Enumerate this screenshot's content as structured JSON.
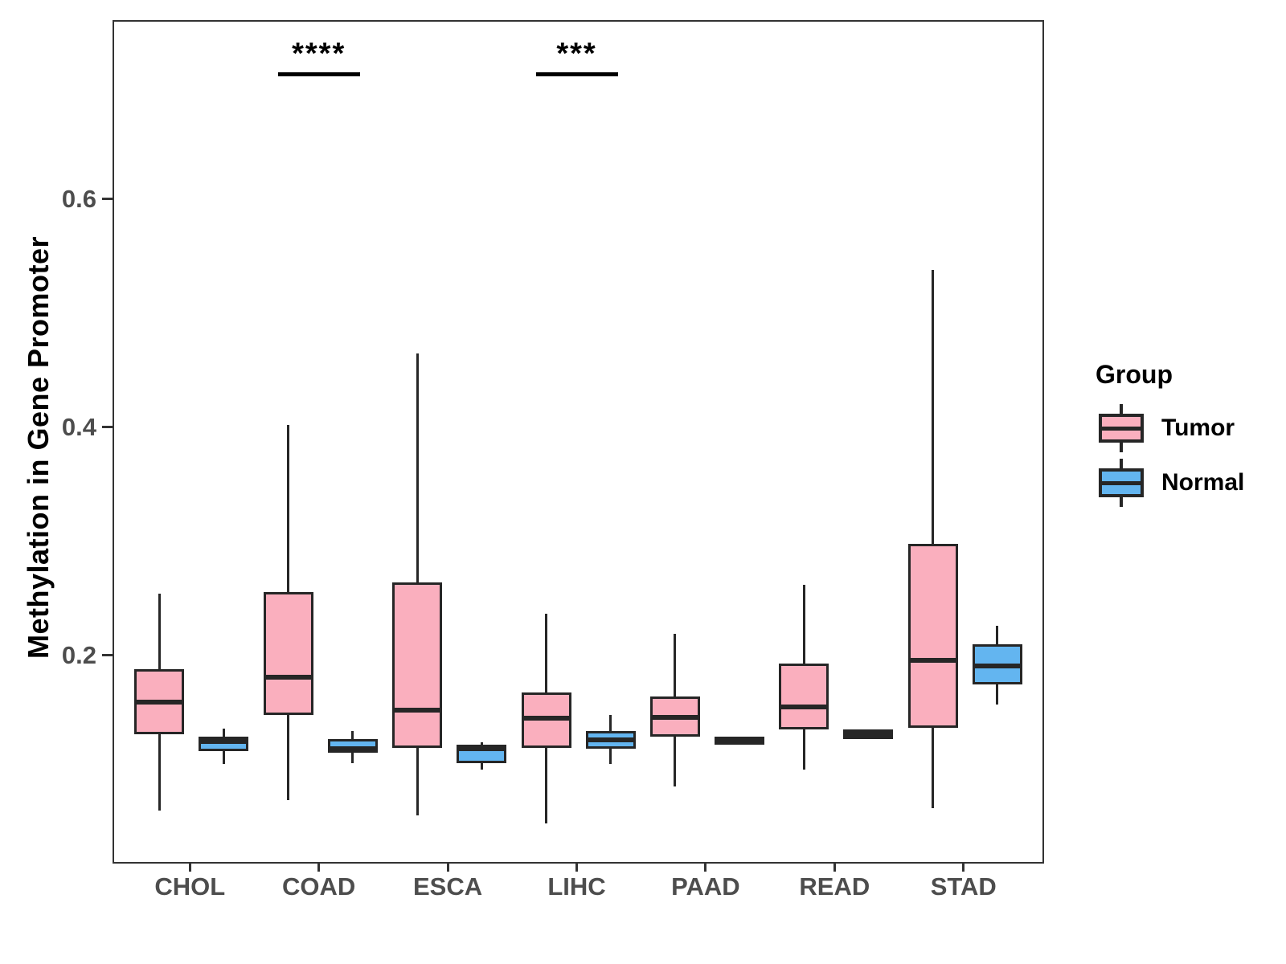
{
  "chart_data": {
    "type": "boxplot",
    "title": "",
    "xlabel": "",
    "ylabel": "Methylation in Gene Promoter",
    "categories": [
      "CHOL",
      "COAD",
      "ESCA",
      "LIHC",
      "PAAD",
      "READ",
      "STAD"
    ],
    "y_ticks": [
      "0.2",
      "0.4",
      "0.6"
    ],
    "y_tick_values": [
      0.2,
      0.4,
      0.6
    ],
    "ylim": [
      0.02,
      0.757
    ],
    "grid": "off",
    "legend_position": "right",
    "legend": {
      "title": "Group",
      "entries": [
        {
          "label": "Tumor",
          "color": "#FAAFBE"
        },
        {
          "label": "Normal",
          "color": "#63B5F0"
        }
      ]
    },
    "colors": {
      "tumor_fill": "#FAAFBE",
      "normal_fill": "#63B5F0",
      "box_border": "#262626",
      "axis_text": "#4d4d4d",
      "axis_line": "#333333"
    },
    "series": [
      {
        "name": "Tumor",
        "color": "#FAAFBE",
        "boxes": [
          {
            "category": "CHOL",
            "min": 0.065,
            "q1": 0.132,
            "median": 0.16,
            "q3": 0.189,
            "max": 0.255
          },
          {
            "category": "COAD",
            "min": 0.074,
            "q1": 0.149,
            "median": 0.182,
            "q3": 0.257,
            "max": 0.403
          },
          {
            "category": "ESCA",
            "min": 0.061,
            "q1": 0.12,
            "median": 0.153,
            "q3": 0.265,
            "max": 0.466
          },
          {
            "category": "LIHC",
            "min": 0.054,
            "q1": 0.12,
            "median": 0.146,
            "q3": 0.169,
            "max": 0.238
          },
          {
            "category": "PAAD",
            "min": 0.086,
            "q1": 0.13,
            "median": 0.147,
            "q3": 0.165,
            "max": 0.22
          },
          {
            "category": "READ",
            "min": 0.101,
            "q1": 0.136,
            "median": 0.156,
            "q3": 0.194,
            "max": 0.263
          },
          {
            "category": "STAD",
            "min": 0.067,
            "q1": 0.138,
            "median": 0.197,
            "q3": 0.299,
            "max": 0.539
          }
        ]
      },
      {
        "name": "Normal",
        "color": "#63B5F0",
        "boxes": [
          {
            "category": "CHOL",
            "min": 0.106,
            "q1": 0.117,
            "median": 0.126,
            "q3": 0.13,
            "max": 0.137
          },
          {
            "category": "COAD",
            "min": 0.107,
            "q1": 0.116,
            "median": 0.119,
            "q3": 0.128,
            "max": 0.135
          },
          {
            "category": "ESCA",
            "min": 0.101,
            "q1": 0.107,
            "median": 0.119,
            "q3": 0.123,
            "max": 0.125
          },
          {
            "category": "LIHC",
            "min": 0.106,
            "q1": 0.119,
            "median": 0.127,
            "q3": 0.135,
            "max": 0.149
          },
          {
            "category": "PAAD",
            "min": 0.123,
            "q1": 0.123,
            "median": 0.127,
            "q3": 0.13,
            "max": 0.13
          },
          {
            "category": "READ",
            "min": 0.128,
            "q1": 0.128,
            "median": 0.132,
            "q3": 0.136,
            "max": 0.136
          },
          {
            "category": "STAD",
            "min": 0.158,
            "q1": 0.176,
            "median": 0.192,
            "q3": 0.211,
            "max": 0.227
          }
        ]
      }
    ],
    "annotations": [
      {
        "category": "COAD",
        "text": "****"
      },
      {
        "category": "LIHC",
        "text": "***"
      }
    ]
  }
}
